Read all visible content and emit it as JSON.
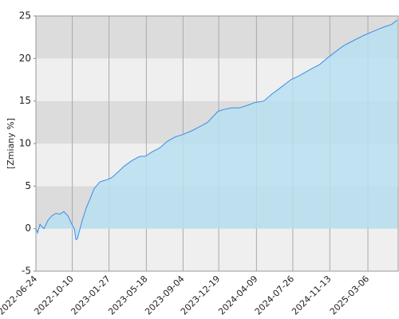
{
  "chart_data": {
    "type": "area",
    "y_label": "[Zmiany %]",
    "x": [
      "2022-06-24",
      "2022-06-29",
      "2022-07-06",
      "2022-07-18",
      "2022-07-30",
      "2022-08-10",
      "2022-08-22",
      "2022-09-03",
      "2022-09-15",
      "2022-09-27",
      "2022-10-09",
      "2022-10-16",
      "2022-10-21",
      "2022-10-25",
      "2022-11-02",
      "2022-11-09",
      "2022-11-21",
      "2022-12-02",
      "2022-12-14",
      "2022-12-31",
      "2023-01-24",
      "2023-02-04",
      "2023-02-24",
      "2023-03-12",
      "2023-04-05",
      "2023-04-29",
      "2023-05-15",
      "2023-06-03",
      "2023-06-27",
      "2023-07-21",
      "2023-08-13",
      "2023-08-30",
      "2023-09-30",
      "2023-10-24",
      "2023-11-16",
      "2023-12-17",
      "2024-01-03",
      "2024-01-27",
      "2024-02-19",
      "2024-03-14",
      "2024-04-02",
      "2024-05-01",
      "2024-05-24",
      "2024-06-17",
      "2024-07-20",
      "2024-08-15",
      "2024-09-20",
      "2024-10-14",
      "2024-11-04",
      "2024-11-30",
      "2024-12-24",
      "2025-01-17",
      "2025-02-21",
      "2025-03-29",
      "2025-04-22",
      "2025-05-15",
      "2025-06-01"
    ],
    "series": [
      {
        "color": "#3a8ee6",
        "fill": "#b8dff0",
        "values": [
          0,
          -0.5,
          0.5,
          0,
          1.0,
          1.5,
          1.8,
          1.7,
          2.0,
          1.5,
          0.5,
          0,
          -1.3,
          -1.2,
          0,
          1.0,
          2.5,
          3.5,
          4.7,
          5.5,
          5.8,
          6.0,
          6.7,
          7.3,
          8.0,
          8.5,
          8.5,
          9.0,
          9.5,
          10.3,
          10.8,
          11.0,
          11.5,
          12.0,
          12.5,
          13.8,
          14.0,
          14.2,
          14.2,
          14.5,
          14.8,
          15.0,
          15.8,
          16.5,
          17.5,
          18.0,
          18.8,
          19.3,
          20.0,
          20.8,
          21.5,
          22.0,
          22.7,
          23.3,
          23.7,
          24.0,
          24.5
        ]
      }
    ],
    "xlim": [
      "2022-06-24",
      "2025-06-04"
    ],
    "xticks": [
      "2022-06-24",
      "2022-10-10",
      "2023-01-27",
      "2023-05-18",
      "2023-09-04",
      "2023-12-19",
      "2024-04-09",
      "2024-07-26",
      "2024-11-13",
      "2025-03-06"
    ],
    "ylim": [
      -5,
      25
    ],
    "yticks": [
      -5,
      0,
      5,
      10,
      15,
      20,
      25
    ],
    "grid": true
  }
}
